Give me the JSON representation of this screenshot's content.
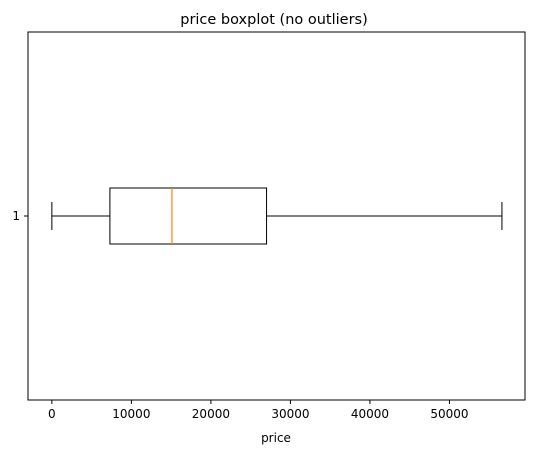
{
  "chart_data": {
    "type": "boxplot",
    "orientation": "horizontal",
    "title": "price boxplot (no outliers)",
    "xlabel": "price",
    "ylabel": "",
    "xlim": [
      -3000,
      59500
    ],
    "x_ticks": [
      0,
      10000,
      20000,
      30000,
      40000,
      50000
    ],
    "y_ticks": [
      "1"
    ],
    "grid": false,
    "boxes": [
      {
        "label": "1",
        "whisker_low": 0,
        "q1": 7300,
        "median": 15100,
        "q3": 27000,
        "whisker_high": 56600
      }
    ],
    "colors": {
      "box": "#000000",
      "median": "#ff7f0e"
    }
  }
}
